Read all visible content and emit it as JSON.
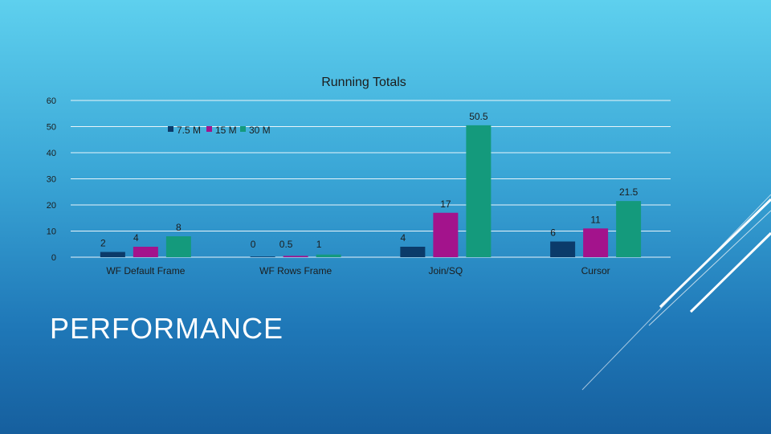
{
  "slide": {
    "title": "PERFORMANCE"
  },
  "colors": {
    "series": [
      "#0b3b6a",
      "#a3138c",
      "#149a7c"
    ],
    "text": "#1c1c1c",
    "grid": "#e8f4fa"
  },
  "chart_data": {
    "type": "bar",
    "title": "Running Totals",
    "xlabel": "",
    "ylabel": "",
    "ylim": [
      0,
      60
    ],
    "yticks": [
      0,
      10,
      20,
      30,
      40,
      50,
      60
    ],
    "grid": true,
    "legend_position": "top-left",
    "categories": [
      "WF Default Frame",
      "WF Rows Frame",
      "Join/SQ",
      "Cursor"
    ],
    "series": [
      {
        "name": "7.5 M",
        "values": [
          2,
          0,
          4,
          6
        ],
        "labels": [
          "2",
          "0",
          "4",
          "6"
        ]
      },
      {
        "name": "15 M",
        "values": [
          4,
          0.5,
          17,
          11
        ],
        "labels": [
          "4",
          "0.5",
          "17",
          "11"
        ]
      },
      {
        "name": "30 M",
        "values": [
          8,
          1,
          50.5,
          21.5
        ],
        "labels": [
          "8",
          "1",
          "50.5",
          "21.5"
        ]
      }
    ]
  }
}
